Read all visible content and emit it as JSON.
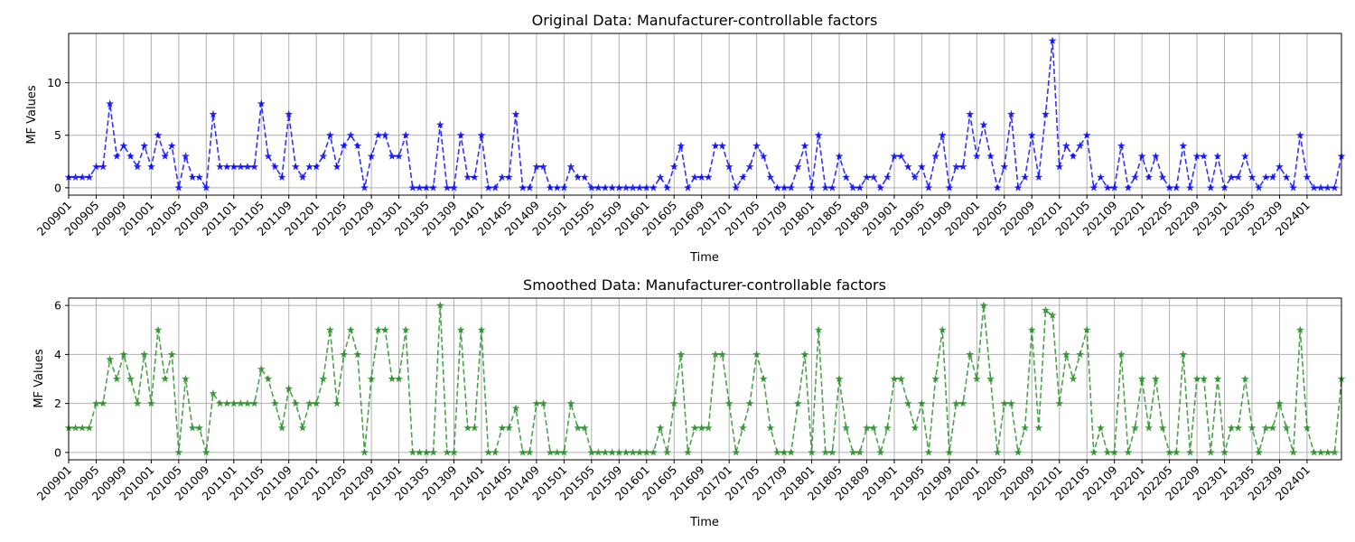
{
  "chart_data": [
    {
      "type": "line",
      "title": "Original Data: Manufacturer-controllable factors",
      "xlabel": "Time",
      "ylabel": "MF Values",
      "x_tick_labels": [
        "200901",
        "200905",
        "200909",
        "201001",
        "201005",
        "201009",
        "201101",
        "201105",
        "201109",
        "201201",
        "201205",
        "201209",
        "201301",
        "201305",
        "201309",
        "201401",
        "201405",
        "201409",
        "201501",
        "201505",
        "201509",
        "201601",
        "201605",
        "201609",
        "201701",
        "201705",
        "201709",
        "201801",
        "201805",
        "201809",
        "201901",
        "201905",
        "201909",
        "202001",
        "202005",
        "202009",
        "202101",
        "202105",
        "202109",
        "202201",
        "202205",
        "202209",
        "202301",
        "202305",
        "202309",
        "202401"
      ],
      "yticks": [
        0,
        5,
        10
      ],
      "ylim": [
        -0.7,
        14.7
      ],
      "grid": true,
      "series": [
        {
          "color": "#0000ff",
          "linestyle": "dashed",
          "marker": "star",
          "values": [
            1,
            1,
            1,
            1,
            2,
            2,
            8,
            3,
            4,
            3,
            2,
            4,
            2,
            5,
            3,
            4,
            0,
            3,
            1,
            1,
            0,
            7,
            2,
            2,
            2,
            2,
            2,
            2,
            8,
            3,
            2,
            1,
            7,
            2,
            1,
            2,
            2,
            3,
            5,
            2,
            4,
            5,
            4,
            0,
            3,
            5,
            5,
            3,
            3,
            5,
            0,
            0,
            0,
            0,
            6,
            0,
            0,
            5,
            1,
            1,
            5,
            0,
            0,
            1,
            1,
            7,
            0,
            0,
            2,
            2,
            0,
            0,
            0,
            2,
            1,
            1,
            0,
            0,
            0,
            0,
            0,
            0,
            0,
            0,
            0,
            0,
            1,
            0,
            2,
            4,
            0,
            1,
            1,
            1,
            4,
            4,
            2,
            0,
            1,
            2,
            4,
            3,
            1,
            0,
            0,
            0,
            2,
            4,
            0,
            5,
            0,
            0,
            3,
            1,
            0,
            0,
            1,
            1,
            0,
            1,
            3,
            3,
            2,
            1,
            2,
            0,
            3,
            5,
            0,
            2,
            2,
            7,
            3,
            6,
            3,
            0,
            2,
            7,
            0,
            1,
            5,
            1,
            7,
            14,
            2,
            4,
            3,
            4,
            5,
            0,
            1,
            0,
            0,
            4,
            0,
            1,
            3,
            1,
            3,
            1,
            0,
            0,
            4,
            0,
            3,
            3,
            0,
            3,
            0,
            1,
            1,
            3,
            1,
            0,
            1,
            1,
            2,
            1,
            0,
            5,
            1,
            0,
            0,
            0,
            0,
            3
          ]
        }
      ]
    },
    {
      "type": "line",
      "title": "Smoothed Data: Manufacturer-controllable factors",
      "xlabel": "Time",
      "ylabel": "MF Values",
      "x_tick_labels": [
        "200901",
        "200905",
        "200909",
        "201001",
        "201005",
        "201009",
        "201101",
        "201105",
        "201109",
        "201201",
        "201205",
        "201209",
        "201301",
        "201305",
        "201309",
        "201401",
        "201405",
        "201409",
        "201501",
        "201505",
        "201509",
        "201601",
        "201605",
        "201609",
        "201701",
        "201705",
        "201709",
        "201801",
        "201805",
        "201809",
        "201901",
        "201905",
        "201909",
        "202001",
        "202005",
        "202009",
        "202101",
        "202105",
        "202109",
        "202201",
        "202205",
        "202209",
        "202301",
        "202305",
        "202309",
        "202401"
      ],
      "yticks": [
        0,
        2,
        4,
        6
      ],
      "ylim": [
        -0.3,
        6.3
      ],
      "grid": true,
      "series": [
        {
          "color": "#228b22",
          "linestyle": "dashed",
          "marker": "star",
          "values": [
            1,
            1,
            1,
            1,
            2,
            2,
            3.8,
            3,
            4,
            3,
            2,
            4,
            2,
            5,
            3,
            4,
            0,
            3,
            1,
            1,
            0,
            2.4,
            2,
            2,
            2,
            2,
            2,
            2,
            3.4,
            3,
            2,
            1,
            2.6,
            2,
            1,
            2,
            2,
            3,
            5,
            2,
            4,
            5,
            4,
            0,
            3,
            5,
            5,
            3,
            3,
            5,
            0,
            0,
            0,
            0,
            6,
            0,
            0,
            5,
            1,
            1,
            5,
            0,
            0,
            1,
            1,
            1.8,
            0,
            0,
            2,
            2,
            0,
            0,
            0,
            2,
            1,
            1,
            0,
            0,
            0,
            0,
            0,
            0,
            0,
            0,
            0,
            0,
            1,
            0,
            2,
            4,
            0,
            1,
            1,
            1,
            4,
            4,
            2,
            0,
            1,
            2,
            4,
            3,
            1,
            0,
            0,
            0,
            2,
            4,
            0,
            5,
            0,
            0,
            3,
            1,
            0,
            0,
            1,
            1,
            0,
            1,
            3,
            3,
            2,
            1,
            2,
            0,
            3,
            5,
            0,
            2,
            2,
            4,
            3,
            6,
            3,
            0,
            2,
            2,
            0,
            1,
            5,
            1,
            5.8,
            5.6,
            2,
            4,
            3,
            4,
            5,
            0,
            1,
            0,
            0,
            4,
            0,
            1,
            3,
            1,
            3,
            1,
            0,
            0,
            4,
            0,
            3,
            3,
            0,
            3,
            0,
            1,
            1,
            3,
            1,
            0,
            1,
            1,
            2,
            1,
            0,
            5,
            1,
            0,
            0,
            0,
            0,
            3
          ]
        }
      ]
    }
  ]
}
